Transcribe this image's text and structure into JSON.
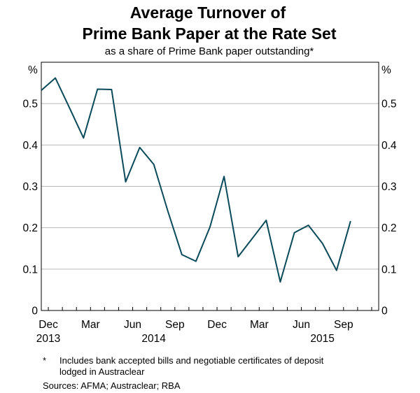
{
  "chart_data": {
    "type": "line",
    "title_lines": [
      "Average Turnover of",
      "Prime Bank Paper at the Rate Set"
    ],
    "subtitle": "as a share of Prime Bank paper outstanding*",
    "ylabel_left": "%",
    "ylabel_right": "%",
    "ylim": [
      0,
      0.6
    ],
    "yticks": [
      0,
      0.1,
      0.2,
      0.3,
      0.4,
      0.5
    ],
    "ytick_labels": [
      "0",
      "0.1",
      "0.2",
      "0.3",
      "0.4",
      "0.5"
    ],
    "xticks": [
      {
        "label": "Dec",
        "month_index": 0
      },
      {
        "label": "Mar",
        "month_index": 3
      },
      {
        "label": "Jun",
        "month_index": 6
      },
      {
        "label": "Sep",
        "month_index": 9
      },
      {
        "label": "Dec",
        "month_index": 12
      },
      {
        "label": "Mar",
        "month_index": 15
      },
      {
        "label": "Jun",
        "month_index": 18
      },
      {
        "label": "Sep",
        "month_index": 21
      }
    ],
    "years": [
      {
        "label": "2013",
        "month_index": 0
      },
      {
        "label": "2014",
        "month_index": 7.5
      },
      {
        "label": "2015",
        "month_index": 19.5
      }
    ],
    "x_range": [
      -0.5,
      23.5
    ],
    "series": [
      {
        "name": "Average turnover",
        "color": "#0b4a5a",
        "x": [
          -0.5,
          0.5,
          1.5,
          2.5,
          3.5,
          4.5,
          5.5,
          6.5,
          7.5,
          8.5,
          9.5,
          10.5,
          11.5,
          12.5,
          13.5,
          14.5,
          15.5,
          16.5,
          17.5,
          18.5,
          19.5,
          20.5,
          21.5,
          22.5
        ],
        "values": [
          0.532,
          0.562,
          0.49,
          0.417,
          0.535,
          0.534,
          0.311,
          0.394,
          0.353,
          0.24,
          0.135,
          0.119,
          0.202,
          0.324,
          0.13,
          0.174,
          0.218,
          0.069,
          0.188,
          0.206,
          0.162,
          0.097,
          0.216,
          null
        ]
      }
    ]
  },
  "footnote": {
    "marker": "*",
    "text_lines": [
      "Includes bank accepted bills and negotiable certificates of deposit",
      "lodged in Austraclear"
    ]
  },
  "sources": "Sources:  AFMA; Austraclear; RBA"
}
